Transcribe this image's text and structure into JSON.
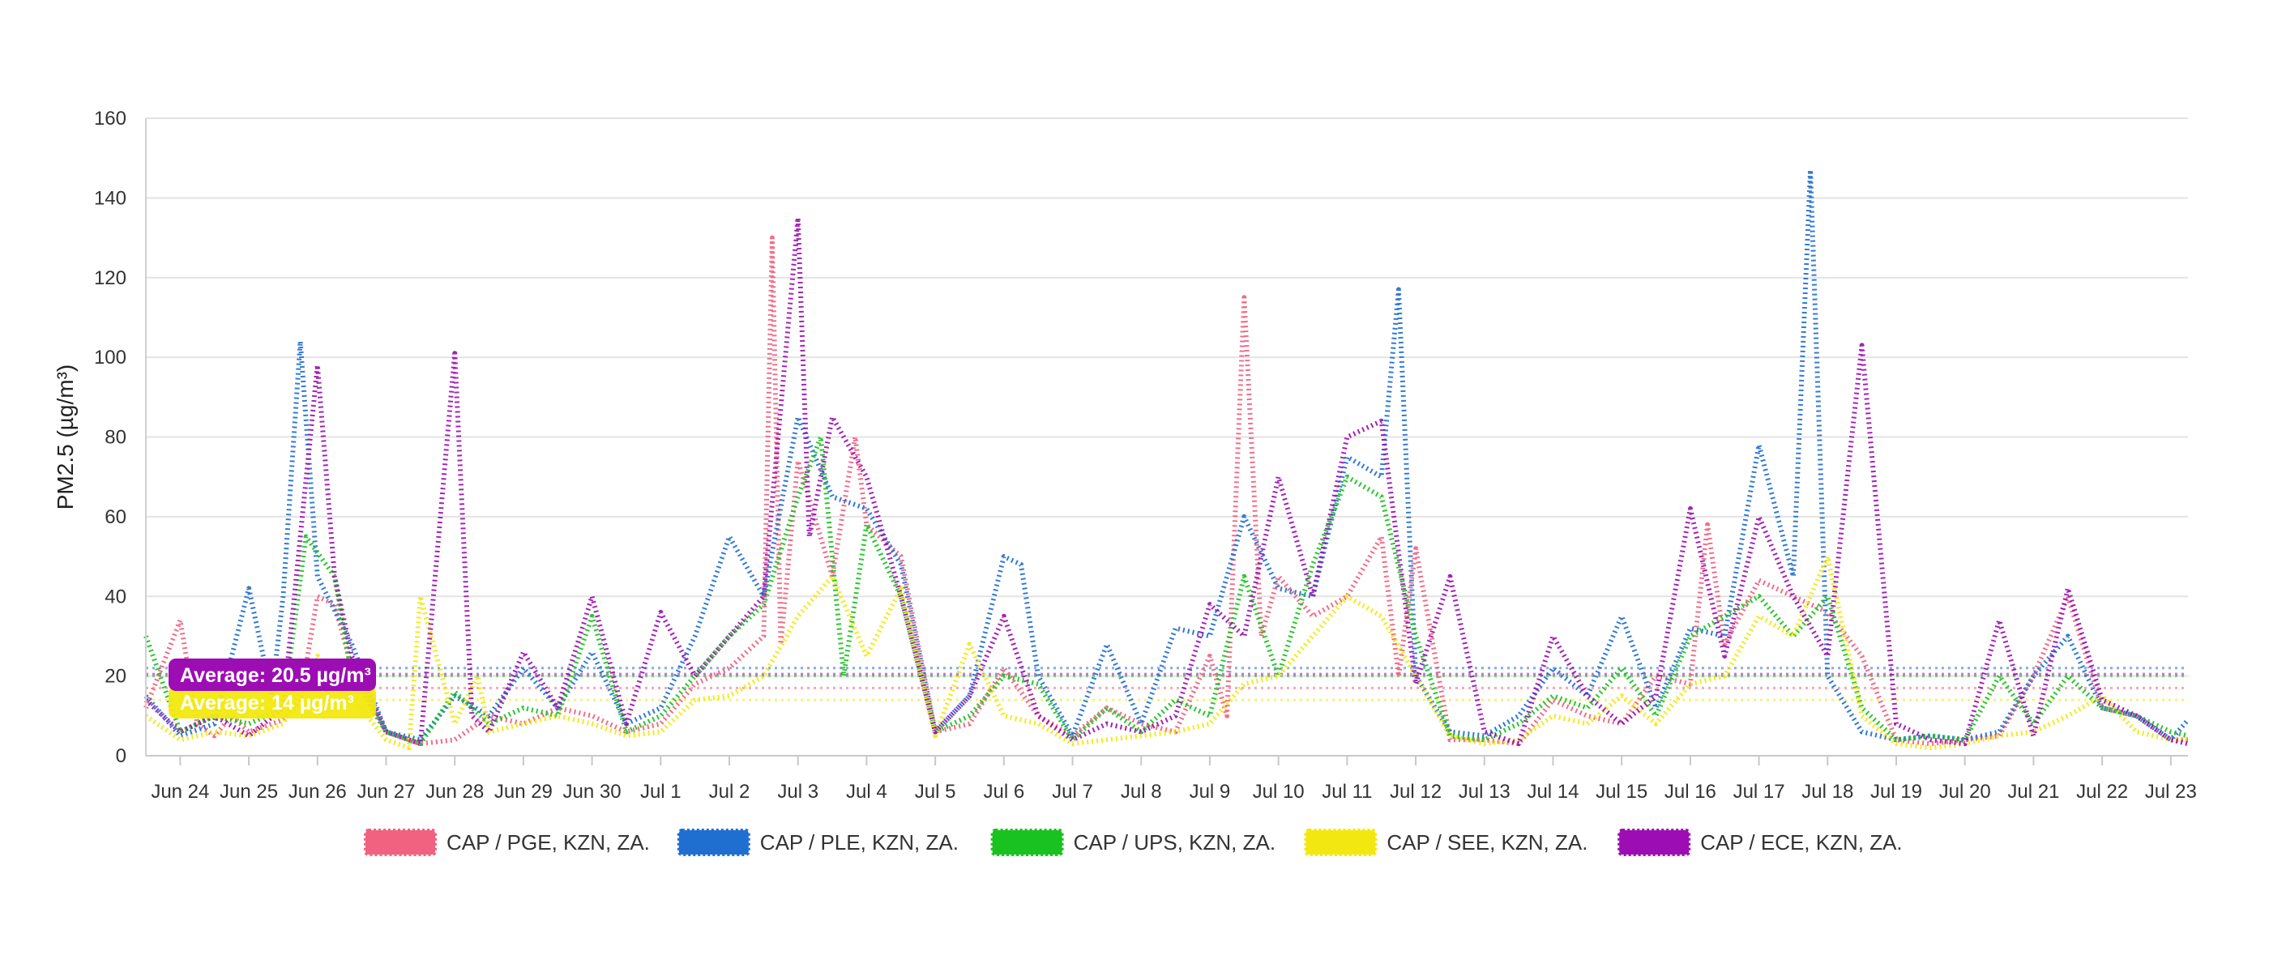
{
  "chart_data": {
    "type": "line",
    "title": "",
    "xlabel": "",
    "ylabel": "PM2.5 (µg/m³)",
    "ylim": [
      0,
      160
    ],
    "y_ticks": [
      0,
      20,
      40,
      60,
      80,
      100,
      120,
      140,
      160
    ],
    "x_range": [
      "2024-06-23T12:00",
      "2024-07-23T06:00"
    ],
    "x_ticks": [
      {
        "label": "Jun 24",
        "date": "2024-06-24"
      },
      {
        "label": "Jun 25",
        "date": "2024-06-25"
      },
      {
        "label": "Jun 26",
        "date": "2024-06-26"
      },
      {
        "label": "Jun 27",
        "date": "2024-06-27"
      },
      {
        "label": "Jun 28",
        "date": "2024-06-28"
      },
      {
        "label": "Jun 29",
        "date": "2024-06-29"
      },
      {
        "label": "Jun 30",
        "date": "2024-06-30"
      },
      {
        "label": "Jul 1",
        "date": "2024-07-01"
      },
      {
        "label": "Jul 2",
        "date": "2024-07-02"
      },
      {
        "label": "Jul 3",
        "date": "2024-07-03"
      },
      {
        "label": "Jul 4",
        "date": "2024-07-04"
      },
      {
        "label": "Jul 5",
        "date": "2024-07-05"
      },
      {
        "label": "Jul 6",
        "date": "2024-07-06"
      },
      {
        "label": "Jul 7",
        "date": "2024-07-07"
      },
      {
        "label": "Jul 8",
        "date": "2024-07-08"
      },
      {
        "label": "Jul 9",
        "date": "2024-07-09"
      },
      {
        "label": "Jul 10",
        "date": "2024-07-10"
      },
      {
        "label": "Jul 11",
        "date": "2024-07-11"
      },
      {
        "label": "Jul 12",
        "date": "2024-07-12"
      },
      {
        "label": "Jul 13",
        "date": "2024-07-13"
      },
      {
        "label": "Jul 14",
        "date": "2024-07-14"
      },
      {
        "label": "Jul 15",
        "date": "2024-07-15"
      },
      {
        "label": "Jul 16",
        "date": "2024-07-16"
      },
      {
        "label": "Jul 17",
        "date": "2024-07-17"
      },
      {
        "label": "Jul 18",
        "date": "2024-07-18"
      },
      {
        "label": "Jul 19",
        "date": "2024-07-19"
      },
      {
        "label": "Jul 20",
        "date": "2024-07-20"
      },
      {
        "label": "Jul 21",
        "date": "2024-07-21"
      },
      {
        "label": "Jul 22",
        "date": "2024-07-22"
      },
      {
        "label": "Jul 23",
        "date": "2024-07-23"
      }
    ],
    "grid": true,
    "line_style": "dotted",
    "legend_position": "bottom-center",
    "series": [
      {
        "name": "CAP / PGE, KZN, ZA.",
        "color": "#f0627f",
        "average": 17,
        "x": [
          "2024-06-23T12:00",
          "2024-06-24T00:00",
          "2024-06-24T06:00",
          "2024-06-24T12:00",
          "2024-06-24T18:00",
          "2024-06-25T00:00",
          "2024-06-25T12:00",
          "2024-06-25T18:00",
          "2024-06-26T00:00",
          "2024-06-26T06:00",
          "2024-06-26T12:00",
          "2024-06-27T00:00",
          "2024-06-27T12:00",
          "2024-06-28T00:00",
          "2024-06-28T12:00",
          "2024-06-29T00:00",
          "2024-06-29T12:00",
          "2024-06-30T00:00",
          "2024-06-30T12:00",
          "2024-07-01T00:00",
          "2024-07-01T12:00",
          "2024-07-02T00:00",
          "2024-07-02T12:00",
          "2024-07-02T15:00",
          "2024-07-02T18:00",
          "2024-07-03T00:00",
          "2024-07-03T12:00",
          "2024-07-03T20:00",
          "2024-07-04T00:00",
          "2024-07-04T12:00",
          "2024-07-05T00:00",
          "2024-07-05T12:00",
          "2024-07-06T00:00",
          "2024-07-06T12:00",
          "2024-07-07T00:00",
          "2024-07-07T12:00",
          "2024-07-08T00:00",
          "2024-07-08T12:00",
          "2024-07-09T00:00",
          "2024-07-09T06:00",
          "2024-07-09T12:00",
          "2024-07-09T18:00",
          "2024-07-10T00:00",
          "2024-07-10T12:00",
          "2024-07-11T00:00",
          "2024-07-11T12:00",
          "2024-07-11T18:00",
          "2024-07-12T00:00",
          "2024-07-12T12:00",
          "2024-07-13T00:00",
          "2024-07-13T12:00",
          "2024-07-14T00:00",
          "2024-07-14T12:00",
          "2024-07-15T00:00",
          "2024-07-15T12:00",
          "2024-07-16T00:00",
          "2024-07-16T06:00",
          "2024-07-16T12:00",
          "2024-07-17T00:00",
          "2024-07-17T12:00",
          "2024-07-18T00:00",
          "2024-07-18T12:00",
          "2024-07-19T00:00",
          "2024-07-19T12:00",
          "2024-07-20T00:00",
          "2024-07-20T12:00",
          "2024-07-21T00:00",
          "2024-07-21T12:00",
          "2024-07-22T00:00",
          "2024-07-22T12:00",
          "2024-07-23T00:00",
          "2024-07-23T06:00"
        ],
        "y": [
          12,
          34,
          8,
          5,
          10,
          6,
          9,
          14,
          40,
          38,
          22,
          6,
          3,
          4,
          10,
          8,
          12,
          10,
          6,
          8,
          18,
          22,
          30,
          130,
          28,
          74,
          45,
          80,
          58,
          50,
          6,
          8,
          22,
          10,
          5,
          12,
          8,
          6,
          25,
          10,
          115,
          30,
          45,
          35,
          40,
          55,
          20,
          52,
          4,
          4,
          3,
          14,
          10,
          8,
          20,
          18,
          58,
          28,
          44,
          40,
          36,
          25,
          4,
          3,
          4,
          5,
          20,
          40,
          12,
          10,
          4,
          4
        ]
      },
      {
        "name": "CAP / PLE, KZN, ZA.",
        "color": "#1f6fd1",
        "average": 22,
        "x": [
          "2024-06-23T12:00",
          "2024-06-24T00:00",
          "2024-06-24T12:00",
          "2024-06-25T00:00",
          "2024-06-25T08:00",
          "2024-06-25T12:00",
          "2024-06-25T18:00",
          "2024-06-26T00:00",
          "2024-06-26T12:00",
          "2024-06-27T00:00",
          "2024-06-27T12:00",
          "2024-06-28T00:00",
          "2024-06-28T12:00",
          "2024-06-29T00:00",
          "2024-06-29T12:00",
          "2024-06-30T00:00",
          "2024-06-30T12:00",
          "2024-07-01T00:00",
          "2024-07-01T12:00",
          "2024-07-02T00:00",
          "2024-07-02T12:00",
          "2024-07-03T00:00",
          "2024-07-03T12:00",
          "2024-07-04T00:00",
          "2024-07-04T12:00",
          "2024-07-05T00:00",
          "2024-07-05T12:00",
          "2024-07-06T00:00",
          "2024-07-06T06:00",
          "2024-07-06T12:00",
          "2024-07-07T00:00",
          "2024-07-07T12:00",
          "2024-07-08T00:00",
          "2024-07-08T12:00",
          "2024-07-09T00:00",
          "2024-07-09T12:00",
          "2024-07-10T00:00",
          "2024-07-10T12:00",
          "2024-07-11T00:00",
          "2024-07-11T12:00",
          "2024-07-11T18:00",
          "2024-07-12T00:00",
          "2024-07-12T12:00",
          "2024-07-13T00:00",
          "2024-07-13T12:00",
          "2024-07-14T00:00",
          "2024-07-14T12:00",
          "2024-07-15T00:00",
          "2024-07-15T12:00",
          "2024-07-16T00:00",
          "2024-07-16T12:00",
          "2024-07-17T00:00",
          "2024-07-17T12:00",
          "2024-07-17T18:00",
          "2024-07-18T00:00",
          "2024-07-18T12:00",
          "2024-07-19T00:00",
          "2024-07-19T12:00",
          "2024-07-20T00:00",
          "2024-07-20T12:00",
          "2024-07-21T00:00",
          "2024-07-21T12:00",
          "2024-07-22T00:00",
          "2024-07-22T12:00",
          "2024-07-23T00:00",
          "2024-07-23T06:00"
        ],
        "y": [
          15,
          5,
          8,
          42,
          15,
          40,
          104,
          45,
          28,
          6,
          4,
          15,
          10,
          22,
          12,
          26,
          8,
          12,
          30,
          55,
          40,
          85,
          65,
          62,
          48,
          6,
          15,
          50,
          48,
          20,
          5,
          28,
          8,
          32,
          30,
          60,
          42,
          40,
          75,
          70,
          117,
          20,
          6,
          5,
          10,
          22,
          15,
          35,
          12,
          32,
          30,
          78,
          45,
          147,
          20,
          6,
          4,
          5,
          4,
          6,
          20,
          30,
          12,
          10,
          4,
          9
        ]
      },
      {
        "name": "CAP / UPS, KZN, ZA.",
        "color": "#19c21e",
        "average": 20,
        "x": [
          "2024-06-23T12:00",
          "2024-06-24T00:00",
          "2024-06-24T12:00",
          "2024-06-25T00:00",
          "2024-06-25T12:00",
          "2024-06-25T20:00",
          "2024-06-26T06:00",
          "2024-06-26T12:00",
          "2024-06-27T00:00",
          "2024-06-27T12:00",
          "2024-06-28T00:00",
          "2024-06-28T12:00",
          "2024-06-29T00:00",
          "2024-06-29T12:00",
          "2024-06-30T00:00",
          "2024-06-30T12:00",
          "2024-07-01T00:00",
          "2024-07-01T12:00",
          "2024-07-02T00:00",
          "2024-07-02T12:00",
          "2024-07-03T00:00",
          "2024-07-03T08:00",
          "2024-07-03T16:00",
          "2024-07-04T00:00",
          "2024-07-04T12:00",
          "2024-07-05T00:00",
          "2024-07-05T12:00",
          "2024-07-06T00:00",
          "2024-07-06T12:00",
          "2024-07-07T00:00",
          "2024-07-07T12:00",
          "2024-07-08T00:00",
          "2024-07-08T12:00",
          "2024-07-09T00:00",
          "2024-07-09T12:00",
          "2024-07-10T00:00",
          "2024-07-10T12:00",
          "2024-07-11T00:00",
          "2024-07-11T12:00",
          "2024-07-12T00:00",
          "2024-07-12T12:00",
          "2024-07-13T00:00",
          "2024-07-13T12:00",
          "2024-07-14T00:00",
          "2024-07-14T12:00",
          "2024-07-15T00:00",
          "2024-07-15T12:00",
          "2024-07-16T00:00",
          "2024-07-16T12:00",
          "2024-07-17T00:00",
          "2024-07-17T12:00",
          "2024-07-18T00:00",
          "2024-07-18T12:00",
          "2024-07-19T00:00",
          "2024-07-19T12:00",
          "2024-07-20T00:00",
          "2024-07-20T12:00",
          "2024-07-21T00:00",
          "2024-07-21T12:00",
          "2024-07-22T00:00",
          "2024-07-22T12:00",
          "2024-07-23T00:00",
          "2024-07-23T06:00"
        ],
        "y": [
          30,
          6,
          10,
          8,
          12,
          55,
          45,
          20,
          6,
          3,
          16,
          8,
          12,
          10,
          35,
          6,
          10,
          20,
          30,
          38,
          65,
          80,
          20,
          58,
          40,
          6,
          10,
          20,
          18,
          4,
          12,
          6,
          14,
          10,
          45,
          20,
          48,
          70,
          65,
          30,
          5,
          4,
          8,
          15,
          12,
          22,
          10,
          30,
          35,
          40,
          30,
          40,
          12,
          4,
          5,
          4,
          20,
          8,
          20,
          12,
          10,
          6,
          5
        ]
      },
      {
        "name": "CAP / SEE, KZN, ZA.",
        "color": "#f2e80f",
        "average": 14,
        "x": [
          "2024-06-23T12:00",
          "2024-06-24T00:00",
          "2024-06-24T12:00",
          "2024-06-25T00:00",
          "2024-06-25T12:00",
          "2024-06-26T00:00",
          "2024-06-26T12:00",
          "2024-06-27T00:00",
          "2024-06-27T08:00",
          "2024-06-27T12:00",
          "2024-06-28T00:00",
          "2024-06-28T08:00",
          "2024-06-28T12:00",
          "2024-06-29T00:00",
          "2024-06-29T12:00",
          "2024-06-30T00:00",
          "2024-06-30T12:00",
          "2024-07-01T00:00",
          "2024-07-01T12:00",
          "2024-07-02T00:00",
          "2024-07-02T12:00",
          "2024-07-03T00:00",
          "2024-07-03T12:00",
          "2024-07-04T00:00",
          "2024-07-04T12:00",
          "2024-07-05T00:00",
          "2024-07-05T12:00",
          "2024-07-06T00:00",
          "2024-07-06T12:00",
          "2024-07-07T00:00",
          "2024-07-07T12:00",
          "2024-07-08T00:00",
          "2024-07-08T12:00",
          "2024-07-09T00:00",
          "2024-07-09T12:00",
          "2024-07-10T00:00",
          "2024-07-10T12:00",
          "2024-07-11T00:00",
          "2024-07-11T12:00",
          "2024-07-12T00:00",
          "2024-07-12T12:00",
          "2024-07-13T00:00",
          "2024-07-13T12:00",
          "2024-07-14T00:00",
          "2024-07-14T12:00",
          "2024-07-15T00:00",
          "2024-07-15T12:00",
          "2024-07-16T00:00",
          "2024-07-16T12:00",
          "2024-07-17T00:00",
          "2024-07-17T12:00",
          "2024-07-18T00:00",
          "2024-07-18T12:00",
          "2024-07-19T00:00",
          "2024-07-19T12:00",
          "2024-07-20T00:00",
          "2024-07-20T12:00",
          "2024-07-21T00:00",
          "2024-07-21T12:00",
          "2024-07-22T00:00",
          "2024-07-22T12:00",
          "2024-07-23T00:00",
          "2024-07-23T06:00"
        ],
        "y": [
          10,
          4,
          6,
          5,
          8,
          25,
          15,
          4,
          2,
          40,
          8,
          20,
          6,
          8,
          10,
          8,
          5,
          6,
          14,
          15,
          20,
          35,
          45,
          25,
          42,
          5,
          28,
          10,
          8,
          3,
          4,
          5,
          6,
          8,
          18,
          20,
          30,
          40,
          35,
          20,
          5,
          3,
          4,
          10,
          8,
          15,
          8,
          18,
          20,
          35,
          30,
          50,
          10,
          3,
          2,
          3,
          5,
          6,
          10,
          15,
          6,
          4,
          4
        ]
      },
      {
        "name": "CAP / ECE, KZN, ZA.",
        "color": "#9c0eb3",
        "average": 20.5,
        "x": [
          "2024-06-23T12:00",
          "2024-06-24T00:00",
          "2024-06-24T12:00",
          "2024-06-25T00:00",
          "2024-06-25T12:00",
          "2024-06-26T00:00",
          "2024-06-26T06:00",
          "2024-06-26T12:00",
          "2024-06-27T00:00",
          "2024-06-27T12:00",
          "2024-06-28T00:00",
          "2024-06-28T06:00",
          "2024-06-28T12:00",
          "2024-06-29T00:00",
          "2024-06-29T12:00",
          "2024-06-30T00:00",
          "2024-06-30T12:00",
          "2024-07-01T00:00",
          "2024-07-01T12:00",
          "2024-07-02T00:00",
          "2024-07-02T12:00",
          "2024-07-03T00:00",
          "2024-07-03T04:00",
          "2024-07-03T12:00",
          "2024-07-04T00:00",
          "2024-07-04T12:00",
          "2024-07-05T00:00",
          "2024-07-05T12:00",
          "2024-07-06T00:00",
          "2024-07-06T12:00",
          "2024-07-07T00:00",
          "2024-07-07T12:00",
          "2024-07-08T00:00",
          "2024-07-08T12:00",
          "2024-07-09T00:00",
          "2024-07-09T12:00",
          "2024-07-10T00:00",
          "2024-07-10T12:00",
          "2024-07-11T00:00",
          "2024-07-11T12:00",
          "2024-07-12T00:00",
          "2024-07-12T12:00",
          "2024-07-13T00:00",
          "2024-07-13T12:00",
          "2024-07-14T00:00",
          "2024-07-14T12:00",
          "2024-07-15T00:00",
          "2024-07-15T12:00",
          "2024-07-16T00:00",
          "2024-07-16T12:00",
          "2024-07-17T00:00",
          "2024-07-17T12:00",
          "2024-07-18T00:00",
          "2024-07-18T12:00",
          "2024-07-19T00:00",
          "2024-07-19T12:00",
          "2024-07-20T00:00",
          "2024-07-20T12:00",
          "2024-07-21T00:00",
          "2024-07-21T12:00",
          "2024-07-22T00:00",
          "2024-07-22T12:00",
          "2024-07-23T00:00",
          "2024-07-23T06:00"
        ],
        "y": [
          14,
          6,
          10,
          5,
          12,
          98,
          45,
          25,
          6,
          3,
          101,
          10,
          6,
          26,
          12,
          40,
          8,
          36,
          20,
          30,
          40,
          135,
          55,
          85,
          70,
          40,
          6,
          15,
          35,
          10,
          4,
          8,
          6,
          10,
          38,
          30,
          70,
          40,
          80,
          84,
          18,
          45,
          6,
          3,
          30,
          15,
          8,
          15,
          62,
          25,
          60,
          40,
          25,
          103,
          8,
          4,
          3,
          34,
          5,
          42,
          14,
          10,
          4,
          3
        ]
      }
    ]
  },
  "avg_badges": [
    {
      "label": "Average: 20.5 µg/m³",
      "color": "#9c0eb3"
    },
    {
      "label": "Average: 14 µg/m³",
      "color": "#f2e80f"
    }
  ]
}
